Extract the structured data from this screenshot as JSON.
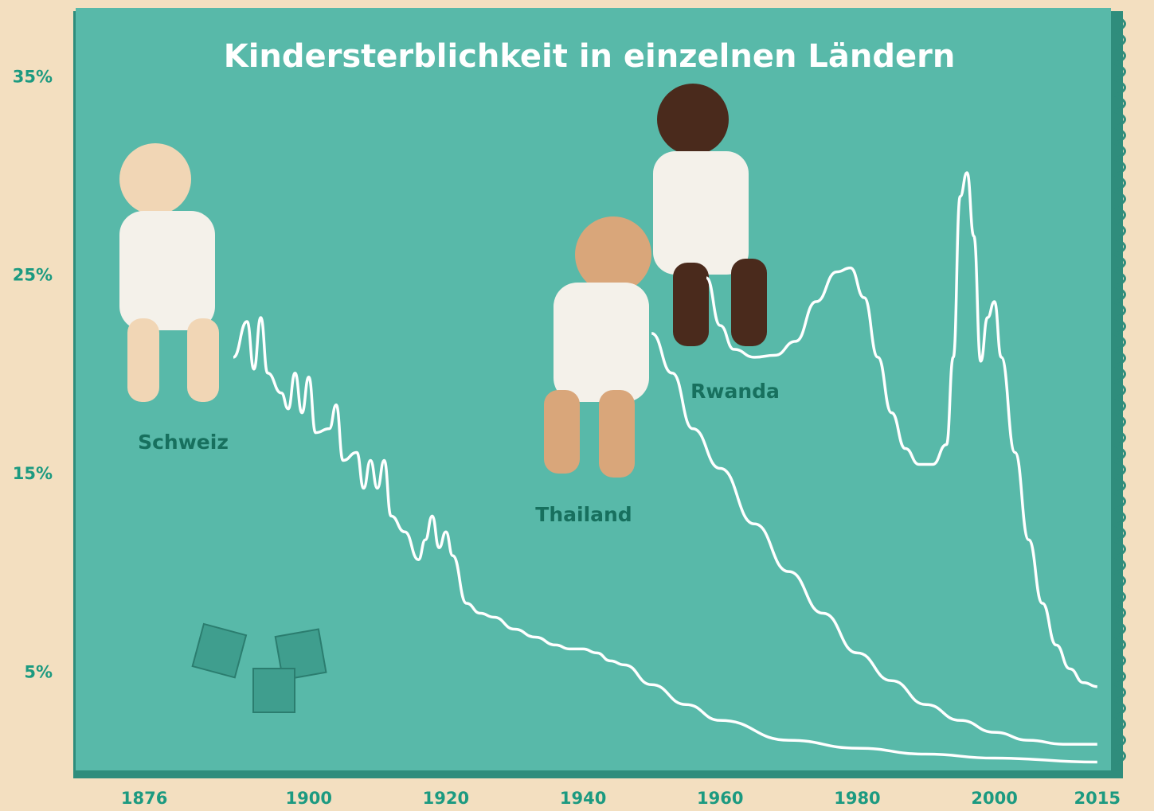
{
  "chart_data": {
    "type": "line",
    "title": "Kindersterblichkeit in einzelnen Ländern",
    "xlim": [
      1866,
      2017
    ],
    "ylim": [
      0,
      38.5
    ],
    "xticks": [
      1876,
      1900,
      1920,
      1940,
      1960,
      1980,
      2000,
      2015
    ],
    "yticks": [
      {
        "value": 5,
        "label": "5%"
      },
      {
        "value": 15,
        "label": "15%"
      },
      {
        "value": 25,
        "label": "25%"
      },
      {
        "value": 35,
        "label": "35%"
      }
    ],
    "grid": false,
    "series": [
      {
        "name": "Schweiz",
        "color": "#ffffff",
        "x": [
          1889,
          1891,
          1892,
          1893,
          1894,
          1896,
          1897,
          1898,
          1899,
          1900,
          1901,
          1903,
          1904,
          1905,
          1907,
          1908,
          1909,
          1910,
          1911,
          1912,
          1914,
          1916,
          1917,
          1918,
          1919,
          1920,
          1921,
          1923,
          1925,
          1927,
          1930,
          1933,
          1936,
          1938,
          1940,
          1942,
          1944,
          1946,
          1950,
          1955,
          1960,
          1970,
          1980,
          1990,
          2000,
          2015
        ],
        "values": [
          20.9,
          22.7,
          20.3,
          22.9,
          20.1,
          19.1,
          18.3,
          20.1,
          18.1,
          19.9,
          17.1,
          17.3,
          18.5,
          15.7,
          16.1,
          14.3,
          15.7,
          14.3,
          15.7,
          12.9,
          12.1,
          10.7,
          11.7,
          12.9,
          11.3,
          12.1,
          10.9,
          8.5,
          8.0,
          7.8,
          7.2,
          6.8,
          6.4,
          6.2,
          6.2,
          6.0,
          5.6,
          5.4,
          4.4,
          3.4,
          2.6,
          1.6,
          1.2,
          0.9,
          0.7,
          0.5
        ]
      },
      {
        "name": "Thailand",
        "color": "#ffffff",
        "x": [
          1950,
          1953,
          1956,
          1960,
          1965,
          1970,
          1975,
          1980,
          1985,
          1990,
          1995,
          2000,
          2005,
          2010,
          2015
        ],
        "values": [
          22.1,
          20.1,
          17.3,
          15.3,
          12.5,
          10.1,
          8.0,
          6.0,
          4.6,
          3.4,
          2.6,
          2.0,
          1.6,
          1.4,
          1.4
        ]
      },
      {
        "name": "Rwanda",
        "color": "#ffffff",
        "x": [
          1958,
          1960,
          1962,
          1965,
          1968,
          1971,
          1974,
          1977,
          1979,
          1981,
          1983,
          1985,
          1987,
          1989,
          1991,
          1993,
          1994,
          1995,
          1996,
          1997,
          1998,
          1999,
          2000,
          2001,
          2003,
          2005,
          2007,
          2009,
          2011,
          2013,
          2015
        ],
        "values": [
          24.9,
          22.5,
          21.3,
          20.9,
          21.0,
          21.7,
          23.7,
          25.2,
          25.4,
          23.9,
          20.9,
          18.1,
          16.3,
          15.5,
          15.5,
          16.5,
          20.9,
          29.0,
          30.2,
          27.0,
          20.7,
          22.9,
          23.7,
          20.9,
          16.1,
          11.7,
          8.5,
          6.4,
          5.2,
          4.5,
          4.3
        ]
      }
    ]
  }
}
